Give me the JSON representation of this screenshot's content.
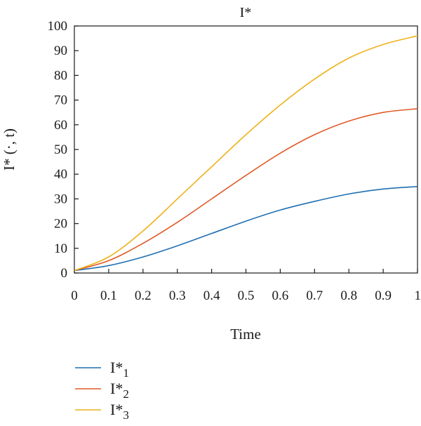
{
  "chart_data": {
    "type": "line",
    "title": "I*",
    "xlabel": "Time",
    "ylabel": "I* (·, t)",
    "xlim": [
      0,
      1
    ],
    "ylim": [
      0,
      100
    ],
    "x_ticks": [
      0,
      0.1,
      0.2,
      0.3,
      0.4,
      0.5,
      0.6,
      0.7,
      0.8,
      0.9,
      1
    ],
    "x_tick_labels": [
      "0",
      "0.1",
      "0.2",
      "0.3",
      "0.4",
      "0.5",
      "0.6",
      "0.7",
      "0.8",
      "0.9",
      "1"
    ],
    "y_ticks": [
      0,
      10,
      20,
      30,
      40,
      50,
      60,
      70,
      80,
      90,
      100
    ],
    "y_tick_labels": [
      "0",
      "10",
      "20",
      "30",
      "40",
      "50",
      "60",
      "70",
      "80",
      "90",
      "100"
    ],
    "grid": false,
    "legend_position": "bottom-left",
    "x": [
      0,
      0.1,
      0.2,
      0.3,
      0.4,
      0.5,
      0.6,
      0.7,
      0.8,
      0.9,
      1.0
    ],
    "series": [
      {
        "name": "I*1",
        "base": "I*",
        "sub": "1",
        "color": "#1f6fb2",
        "values": [
          1,
          3,
          6.5,
          11,
          16,
          21,
          25.5,
          29,
          32,
          34,
          35
        ]
      },
      {
        "name": "I*2",
        "base": "I*",
        "sub": "2",
        "color": "#e05a28",
        "values": [
          1,
          5,
          12,
          20.5,
          30,
          39.5,
          48.5,
          56,
          61.5,
          65,
          66.5
        ]
      },
      {
        "name": "I*3",
        "base": "I*",
        "sub": "3",
        "color": "#eeb11a",
        "values": [
          1,
          6.5,
          17,
          30,
          43,
          56,
          68,
          78.5,
          87,
          92.5,
          96
        ]
      }
    ]
  }
}
